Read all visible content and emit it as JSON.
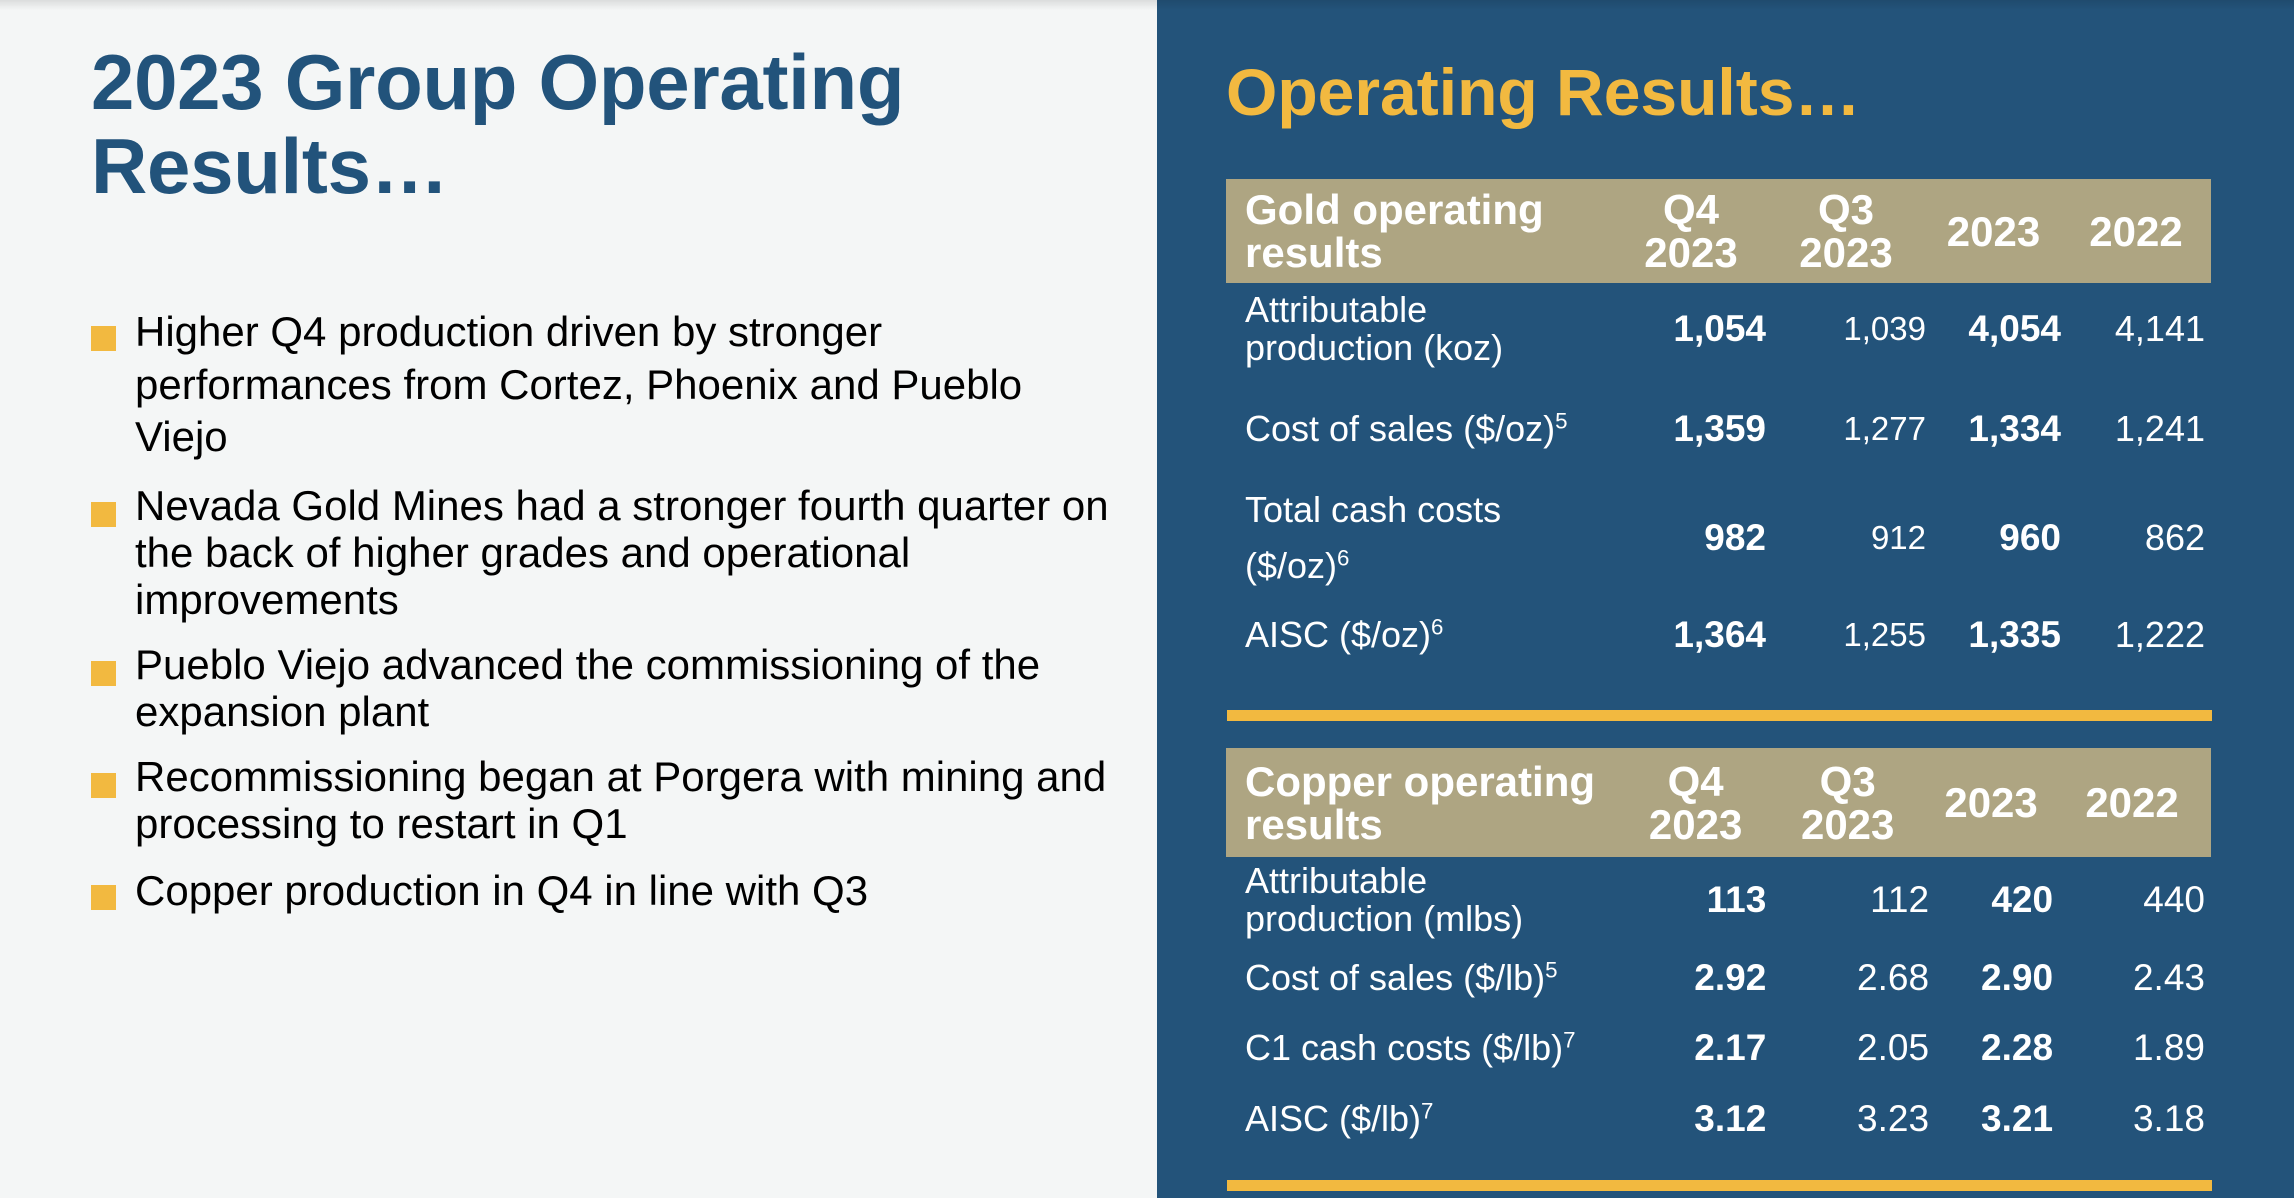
{
  "left": {
    "title_line1": "2023 Group Operating",
    "title_line2": "Results…",
    "bullets": [
      "Higher Q4 production driven by stronger performances from Cortez, Phoenix and Pueblo Viejo",
      "Nevada Gold Mines had a stronger fourth quarter on the back of higher grades and operational improvements",
      "Pueblo Viejo advanced the commissioning of the expansion plant",
      "Recommissioning began at Porgera with mining and processing to restart in Q1",
      "Copper production in Q4 in line with Q3"
    ]
  },
  "right": {
    "title": "Operating Results…",
    "gold_table": {
      "header": {
        "label_line1": "Gold operating",
        "label_line2": "results",
        "columns": [
          {
            "line1": "Q4",
            "line2": "2023"
          },
          {
            "line1": "Q3",
            "line2": "2023"
          },
          {
            "line1": "2023",
            "line2": ""
          },
          {
            "line1": "2022",
            "line2": ""
          }
        ]
      },
      "rows": [
        {
          "label_line1": "Attributable",
          "label_line2": "production (koz)",
          "sup": "",
          "values": [
            "1,054",
            "1,039",
            "4,054",
            "4,141"
          ]
        },
        {
          "label_line1": "Cost of sales ($/oz)",
          "label_line2": "",
          "sup": "5",
          "values": [
            "1,359",
            "1,277",
            "1,334",
            "1,241"
          ]
        },
        {
          "label_line1": "Total cash costs",
          "label_line2": "($/oz)",
          "sup": "6",
          "values": [
            "982",
            "912",
            "960",
            "862"
          ]
        },
        {
          "label_line1": "AISC ($/oz)",
          "label_line2": "",
          "sup": "6",
          "values": [
            "1,364",
            "1,255",
            "1,335",
            "1,222"
          ]
        }
      ]
    },
    "copper_table": {
      "header": {
        "label_line1": "Copper operating",
        "label_line2": "results",
        "columns": [
          {
            "line1": "Q4",
            "line2": "2023"
          },
          {
            "line1": "Q3",
            "line2": "2023"
          },
          {
            "line1": "2023",
            "line2": ""
          },
          {
            "line1": "2022",
            "line2": ""
          }
        ]
      },
      "rows": [
        {
          "label_line1": "Attributable",
          "label_line2": "production (mlbs)",
          "sup": "",
          "values": [
            "113",
            "112",
            "420",
            "440"
          ]
        },
        {
          "label_line1": "Cost of sales ($/lb)",
          "label_line2": "",
          "sup": "5",
          "values": [
            "2.92",
            "2.68",
            "2.90",
            "2.43"
          ]
        },
        {
          "label_line1": "C1 cash costs ($/lb)",
          "label_line2": "",
          "sup": "7",
          "values": [
            "2.17",
            "2.05",
            "2.28",
            "1.89"
          ]
        },
        {
          "label_line1": "AISC ($/lb)",
          "label_line2": "",
          "sup": "7",
          "values": [
            "3.12",
            "3.23",
            "3.21",
            "3.18"
          ]
        }
      ]
    }
  },
  "colors": {
    "navy": "#23537A",
    "accent_yellow": "#F2B940",
    "header_tan": "#AEA582",
    "left_bg": "#F4F6F6",
    "left_title": "#22537B"
  }
}
